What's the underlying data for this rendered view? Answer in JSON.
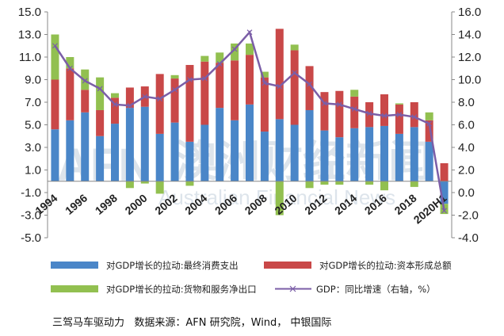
{
  "chart_data": {
    "type": "bar",
    "title": "",
    "categories": [
      "1994",
      "1995",
      "1996",
      "1997",
      "1998",
      "1999",
      "2000",
      "2001",
      "2002",
      "2003",
      "2004",
      "2005",
      "2006",
      "2007",
      "2008",
      "2009",
      "2010",
      "2011",
      "2012",
      "2013",
      "2014",
      "2015",
      "2016",
      "2017",
      "2018",
      "2019",
      "2020H1"
    ],
    "xtick_labels": [
      "1994",
      "1996",
      "1998",
      "2000",
      "2002",
      "2004",
      "2006",
      "2008",
      "2010",
      "2012",
      "2014",
      "2016",
      "2018",
      "2020H1"
    ],
    "series": [
      {
        "name": "对GDP增长的拉动:最终消费支出",
        "axis": "left",
        "color": "#4a86c8",
        "values": [
          4.6,
          5.4,
          6.1,
          4.0,
          5.1,
          6.5,
          6.6,
          4.2,
          5.2,
          3.5,
          5.0,
          6.5,
          5.4,
          6.8,
          4.4,
          5.5,
          5.0,
          6.3,
          4.5,
          3.9,
          4.7,
          4.8,
          4.9,
          4.2,
          4.8,
          3.5,
          -2.0
        ]
      },
      {
        "name": "对GDP增长的拉动:资本形成总额",
        "axis": "left",
        "color": "#c94848",
        "values": [
          4.4,
          4.6,
          2.0,
          2.3,
          2.3,
          1.8,
          1.8,
          5.3,
          3.9,
          6.8,
          5.6,
          4.0,
          5.3,
          4.4,
          4.8,
          8.0,
          6.6,
          3.9,
          3.4,
          4.1,
          2.8,
          2.2,
          2.8,
          2.6,
          2.2,
          1.9,
          1.6
        ]
      },
      {
        "name": "对GDP增长的拉动:货物和服务净出口",
        "axis": "left",
        "color": "#92c050",
        "values": [
          4.0,
          1.0,
          1.8,
          2.9,
          0.4,
          -0.6,
          -0.2,
          -1.1,
          0.3,
          -0.4,
          0.5,
          0.9,
          1.5,
          1.0,
          0.5,
          -3.0,
          0.5,
          -0.6,
          -0.3,
          -0.3,
          0.6,
          -0.3,
          -0.8,
          0.1,
          -0.5,
          0.7,
          -0.9
        ]
      },
      {
        "name": "GDP：同比增速（右轴，%）",
        "axis": "right",
        "type": "line",
        "color": "#7b5ea7",
        "values": [
          13.0,
          11.0,
          9.9,
          9.2,
          7.8,
          7.7,
          8.5,
          8.3,
          9.1,
          10.0,
          10.1,
          11.4,
          12.7,
          14.2,
          9.7,
          9.4,
          10.6,
          9.6,
          7.9,
          7.8,
          7.4,
          7.0,
          6.8,
          6.9,
          6.7,
          6.1,
          -1.6
        ]
      }
    ],
    "left_axis": {
      "ylim": [
        -5.0,
        15.0
      ],
      "ticks": [
        "15.0",
        "13.0",
        "11.0",
        "9.0",
        "7.0",
        "5.0",
        "3.0",
        "1.0",
        "-1.0",
        "-3.0",
        "-5.0"
      ]
    },
    "right_axis": {
      "ylim": [
        -4.0,
        16.0
      ],
      "ticks": [
        "16.0",
        "14.0",
        "12.0",
        "10.0",
        "8.0",
        "6.0",
        "4.0",
        "2.0",
        "0.0",
        "-2.0",
        "-4.0"
      ]
    },
    "legend": [
      {
        "label": "对GDP增长的拉动:最终消费支出",
        "kind": "bar",
        "color": "#4a86c8"
      },
      {
        "label": "对GDP增长的拉动:资本形成总额",
        "kind": "bar",
        "color": "#c94848"
      },
      {
        "label": "对GDP增长的拉动:货物和服务净出口",
        "kind": "bar",
        "color": "#92c050"
      },
      {
        "label": "GDP：同比增速（右轴，%）",
        "kind": "line",
        "color": "#7b5ea7"
      }
    ],
    "legend_position": "bottom",
    "grid": false
  },
  "watermark": {
    "logo": "AFN",
    "cn": "澳洲财经新闻",
    "en": "Australian Financial News"
  },
  "caption": "三驾马车驱动力   数据来源：AFN 研究院，Wind， 中银国际"
}
